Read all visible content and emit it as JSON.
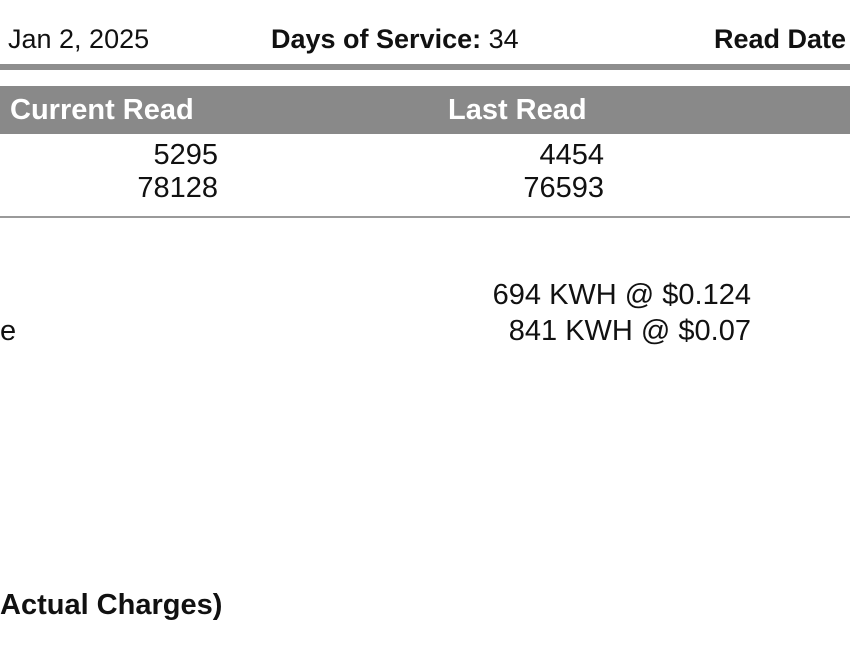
{
  "header": {
    "date_value": "Jan 2, 2025",
    "days_label": "Days of Service:",
    "days_value": "34",
    "read_date_label": "Read Date"
  },
  "meter_table": {
    "columns": [
      "Current Read",
      "Last Read"
    ],
    "rows": [
      {
        "current": "5295",
        "last": "4454"
      },
      {
        "current": "78128",
        "last": "76593"
      }
    ]
  },
  "usage": {
    "left_fragment": "e",
    "lines": [
      "694 KWH @ $0.124",
      "841 KWH @ $0.07"
    ]
  },
  "footer": {
    "text": "Actual Charges)"
  }
}
